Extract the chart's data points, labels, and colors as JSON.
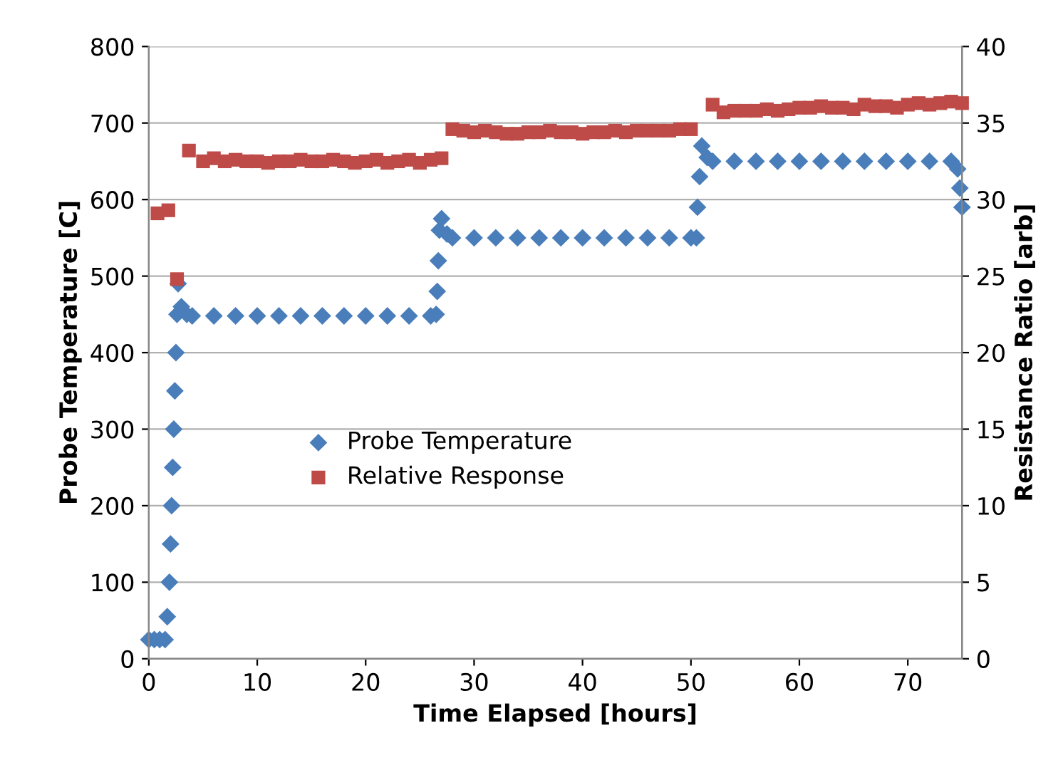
{
  "chart_data": {
    "type": "scatter",
    "xlabel": "Time Elapsed [hours]",
    "ylabel": "Probe Temperature [C]",
    "y2label": "Resistance Ratio [arb]",
    "xlim": [
      0,
      75
    ],
    "xticks": [
      0,
      10,
      20,
      30,
      40,
      50,
      60,
      70
    ],
    "ylim": [
      0,
      800
    ],
    "yticks": [
      0,
      100,
      200,
      300,
      400,
      500,
      600,
      700,
      800
    ],
    "y2lim": [
      0,
      40
    ],
    "y2ticks": [
      0,
      5,
      10,
      15,
      20,
      25,
      30,
      35,
      40
    ],
    "grid": "y",
    "legend": "center",
    "series": [
      {
        "name": "Probe Temperature",
        "color": "#4a7ebb",
        "marker": "diamond",
        "x": [
          0,
          0.5,
          1,
          1.5,
          1.7,
          1.9,
          2.0,
          2.1,
          2.2,
          2.3,
          2.4,
          2.5,
          2.6,
          2.7,
          3,
          3.5,
          4,
          6,
          8,
          10,
          12,
          14,
          16,
          18,
          20,
          22,
          24,
          26,
          26.5,
          26.6,
          26.7,
          26.8,
          27,
          27.5,
          28,
          30,
          32,
          34,
          36,
          38,
          40,
          42,
          44,
          46,
          48,
          50,
          50.5,
          50.6,
          50.8,
          51,
          51.5,
          52,
          54,
          56,
          58,
          60,
          62,
          64,
          66,
          68,
          70,
          72,
          74,
          74.6,
          74.8,
          75
        ],
        "values": [
          25,
          25,
          25,
          25,
          55,
          100,
          150,
          200,
          250,
          300,
          350,
          400,
          450,
          490,
          460,
          450,
          448,
          448,
          448,
          448,
          448,
          448,
          448,
          448,
          448,
          448,
          448,
          448,
          450,
          480,
          520,
          560,
          575,
          555,
          550,
          550,
          550,
          550,
          550,
          550,
          550,
          550,
          550,
          550,
          550,
          550,
          550,
          590,
          630,
          670,
          655,
          650,
          650,
          650,
          650,
          650,
          650,
          650,
          650,
          650,
          650,
          650,
          650,
          640,
          615,
          590
        ]
      },
      {
        "name": "Relative Response",
        "color": "#be4b48",
        "marker": "square",
        "axis": "y2",
        "x": [
          0.8,
          1.8,
          2.6,
          3.7,
          5,
          6,
          7,
          8,
          9,
          10,
          11,
          12,
          13,
          14,
          15,
          16,
          17,
          18,
          19,
          20,
          21,
          22,
          23,
          24,
          25,
          26,
          27,
          28,
          29,
          30,
          31,
          32,
          33,
          34,
          35,
          36,
          37,
          38,
          39,
          40,
          41,
          42,
          43,
          44,
          45,
          46,
          47,
          48,
          49,
          50,
          52,
          53,
          54,
          55,
          56,
          57,
          58,
          59,
          60,
          61,
          62,
          63,
          64,
          65,
          66,
          67,
          68,
          69,
          70,
          71,
          72,
          73,
          74,
          75
        ],
        "values": [
          29.1,
          29.3,
          24.8,
          33.2,
          32.5,
          32.7,
          32.5,
          32.6,
          32.5,
          32.5,
          32.4,
          32.5,
          32.5,
          32.6,
          32.5,
          32.5,
          32.6,
          32.5,
          32.4,
          32.5,
          32.6,
          32.4,
          32.5,
          32.6,
          32.4,
          32.6,
          32.7,
          34.6,
          34.5,
          34.4,
          34.5,
          34.4,
          34.3,
          34.3,
          34.4,
          34.4,
          34.5,
          34.4,
          34.4,
          34.3,
          34.4,
          34.4,
          34.5,
          34.4,
          34.5,
          34.5,
          34.5,
          34.5,
          34.6,
          34.6,
          36.2,
          35.7,
          35.8,
          35.8,
          35.8,
          35.9,
          35.8,
          35.9,
          36.0,
          36.0,
          36.1,
          36.0,
          36.0,
          35.9,
          36.2,
          36.1,
          36.1,
          36.0,
          36.2,
          36.3,
          36.2,
          36.3,
          36.4,
          36.3
        ]
      }
    ]
  }
}
